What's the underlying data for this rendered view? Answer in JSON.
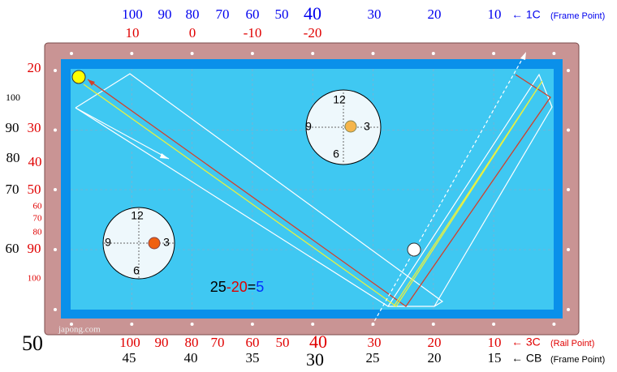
{
  "top_scale": {
    "first_cushion": [
      "100",
      "90",
      "80",
      "70",
      "60",
      "50",
      "40",
      "30",
      "20",
      "10"
    ],
    "corrections": [
      "10",
      "0",
      "-10",
      "-20"
    ],
    "legend_arrow": "← 1C",
    "legend_note": "(Frame Point)"
  },
  "left_scale": {
    "black": [
      "100",
      "90",
      "80",
      "70",
      "60"
    ],
    "red": [
      "20",
      "30",
      "40",
      "50",
      "90"
    ],
    "red_small": [
      "60",
      "70",
      "80",
      "100"
    ]
  },
  "bottom_scale": {
    "third_cushion": [
      "100",
      "90",
      "80",
      "70",
      "60",
      "50",
      "40",
      "30",
      "20",
      "10"
    ],
    "cue_ball": [
      "50",
      "45",
      "40",
      "35",
      "30",
      "25",
      "20",
      "15"
    ],
    "rail_arrow": "← 3C",
    "rail_note": "(Rail Point)",
    "cb_arrow": "← CB",
    "cb_note": "(Frame Point)"
  },
  "formula": {
    "a": "25",
    "b": "-20",
    "eq": "=",
    "result": "5"
  },
  "clock_top": {
    "twelve": "12",
    "three": "3",
    "six": "6",
    "nine": "9"
  },
  "clock_left": {
    "twelve": "12",
    "three": "3",
    "six": "6",
    "nine": "9"
  },
  "watermark": "japong.com"
}
